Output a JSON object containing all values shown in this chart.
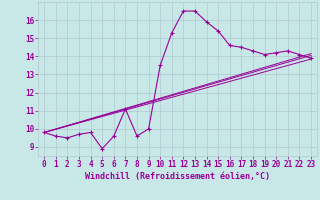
{
  "xlabel": "Windchill (Refroidissement éolien,°C)",
  "background_color": "#c8e8e8",
  "grid_color": "#b0c8d0",
  "line_color": "#990099",
  "xlim": [
    -0.5,
    23.5
  ],
  "ylim": [
    8.5,
    17.0
  ],
  "xticks": [
    0,
    1,
    2,
    3,
    4,
    5,
    6,
    7,
    8,
    9,
    10,
    11,
    12,
    13,
    14,
    15,
    16,
    17,
    18,
    19,
    20,
    21,
    22,
    23
  ],
  "yticks": [
    9,
    10,
    11,
    12,
    13,
    14,
    15,
    16
  ],
  "main_x": [
    0,
    1,
    2,
    3,
    4,
    5,
    6,
    7,
    8,
    9,
    10,
    11,
    12,
    13,
    14,
    15,
    16,
    17,
    18,
    19,
    20,
    21,
    22,
    23
  ],
  "main_y": [
    9.8,
    9.6,
    9.5,
    9.7,
    9.8,
    8.9,
    9.6,
    11.1,
    9.6,
    10.0,
    13.5,
    15.3,
    16.5,
    16.5,
    15.9,
    15.4,
    14.6,
    14.5,
    14.3,
    14.1,
    14.2,
    14.3,
    14.1,
    13.9
  ],
  "line1_x": [
    0,
    23
  ],
  "line1_y": [
    9.8,
    13.85
  ],
  "line2_x": [
    0,
    23
  ],
  "line2_y": [
    9.8,
    14.05
  ],
  "line3_x": [
    0,
    23
  ],
  "line3_y": [
    9.8,
    14.15
  ],
  "tick_fontsize": 5.5,
  "xlabel_fontsize": 6.0
}
